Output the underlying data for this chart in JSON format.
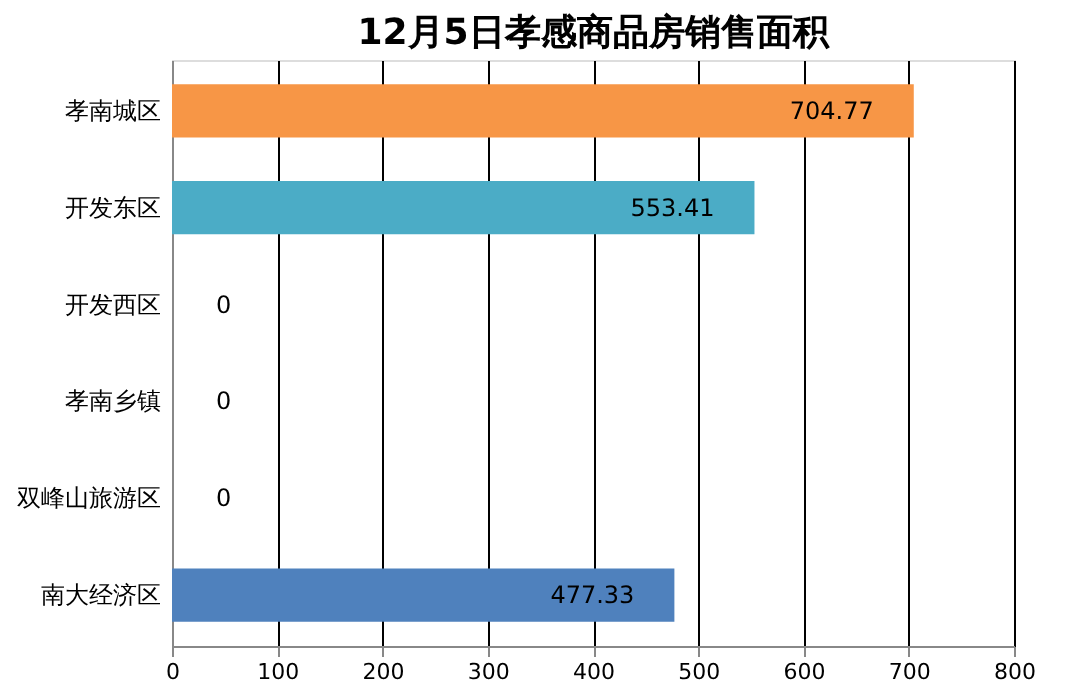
{
  "chart_data": {
    "type": "bar",
    "orientation": "horizontal",
    "title": "12月5日孝感商品房销售面积",
    "categories": [
      "孝南城区",
      "开发东区",
      "开发西区",
      "孝南乡镇",
      "双峰山旅游区",
      "南大经济区"
    ],
    "values": [
      704.77,
      553.41,
      0,
      0,
      0,
      477.33
    ],
    "colors": [
      "#f79646",
      "#4bacc6",
      "#4f81bd",
      "#4f81bd",
      "#4f81bd",
      "#4f81bd"
    ],
    "xlim": [
      0,
      800
    ],
    "xticks": [
      0,
      100,
      200,
      300,
      400,
      500,
      600,
      700,
      800
    ],
    "grid": "x",
    "data_labels": true
  }
}
